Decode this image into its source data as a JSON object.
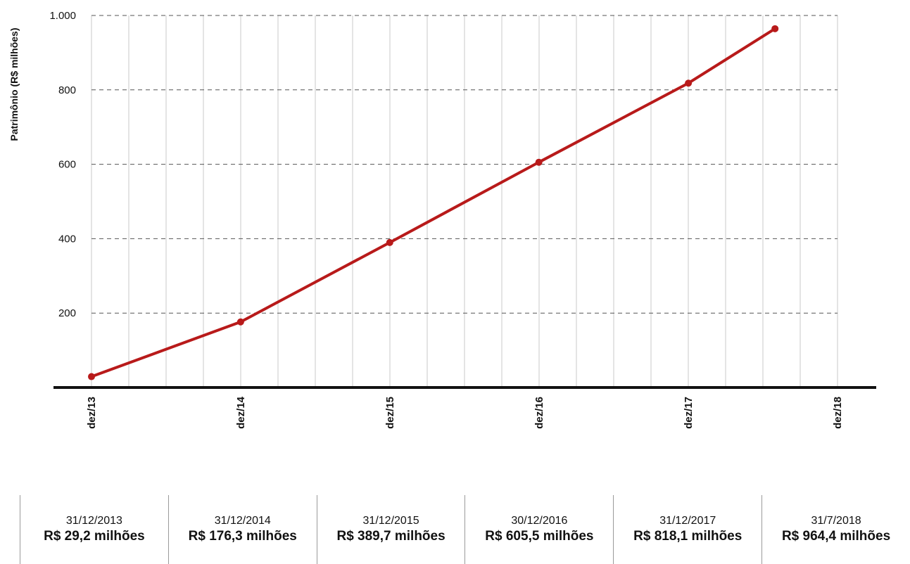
{
  "chart_data": {
    "type": "line",
    "ylabel": "Patrimônio (R$ milhões)",
    "ylim": [
      0,
      1000
    ],
    "y_ticks": [
      "200",
      "400",
      "600",
      "800",
      "1.000"
    ],
    "y_tick_values": [
      200,
      400,
      600,
      800,
      1000
    ],
    "x_ticks": [
      "dez/13",
      "dez/14",
      "dez/15",
      "dez/16",
      "dez/17",
      "dez/18"
    ],
    "xlim": [
      "2013-12",
      "2018-12"
    ],
    "grid": true,
    "series": [
      {
        "color": "#b81a1a",
        "points": [
          {
            "x": "2013-12-31",
            "y": 29.2
          },
          {
            "x": "2014-12-31",
            "y": 176.3
          },
          {
            "x": "2015-12-31",
            "y": 389.7
          },
          {
            "x": "2016-12-30",
            "y": 605.5
          },
          {
            "x": "2017-12-31",
            "y": 818.1
          },
          {
            "x": "2018-07-31",
            "y": 964.4
          }
        ]
      }
    ]
  },
  "summary": [
    {
      "date": "31/12/2013",
      "value": "R$ 29,2 milhões"
    },
    {
      "date": "31/12/2014",
      "value": "R$ 176,3 milhões"
    },
    {
      "date": "31/12/2015",
      "value": "R$ 389,7 milhões"
    },
    {
      "date": "30/12/2016",
      "value": "R$ 605,5 milhões"
    },
    {
      "date": "31/12/2017",
      "value": "R$ 818,1 milhões"
    },
    {
      "date": "31/7/2018",
      "value": "R$ 964,4 milhões"
    }
  ]
}
